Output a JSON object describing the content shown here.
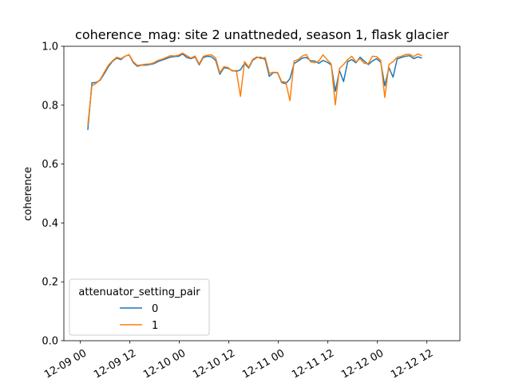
{
  "chart_data": {
    "type": "line",
    "title": "coherence_mag: site 2 unattneded, season 1, flask glacier",
    "xlabel": "",
    "ylabel": "coherence",
    "xlim": [
      "2012-12-08 20:00",
      "2012-12-12 20:00"
    ],
    "ylim": [
      0.0,
      1.0
    ],
    "grid": false,
    "x_ticks": [
      {
        "at": "2012-12-09 00:00",
        "label": "12-09 00"
      },
      {
        "at": "2012-12-09 12:00",
        "label": "12-09 12"
      },
      {
        "at": "2012-12-10 00:00",
        "label": "12-10 00"
      },
      {
        "at": "2012-12-10 12:00",
        "label": "12-10 12"
      },
      {
        "at": "2012-12-11 00:00",
        "label": "12-11 00"
      },
      {
        "at": "2012-12-11 12:00",
        "label": "12-11 12"
      },
      {
        "at": "2012-12-12 00:00",
        "label": "12-12 00"
      },
      {
        "at": "2012-12-12 12:00",
        "label": "12-12 12"
      }
    ],
    "y_ticks": [
      {
        "value": 0.0,
        "label": "0.0"
      },
      {
        "value": 0.2,
        "label": "0.2"
      },
      {
        "value": 0.4,
        "label": "0.4"
      },
      {
        "value": 0.6,
        "label": "0.6"
      },
      {
        "value": 0.8,
        "label": "0.8"
      },
      {
        "value": 1.0,
        "label": "1.0"
      }
    ],
    "legend": {
      "title": "attenuator_setting_pair",
      "position": "lower-left"
    },
    "series": [
      {
        "name": "0",
        "color": "#1f77b4",
        "points": [
          [
            "2012-12-09 01:48",
            0.716
          ],
          [
            "2012-12-09 02:48",
            0.876
          ],
          [
            "2012-12-09 03:48",
            0.877
          ],
          [
            "2012-12-09 04:48",
            0.885
          ],
          [
            "2012-12-09 05:48",
            0.907
          ],
          [
            "2012-12-09 06:48",
            0.931
          ],
          [
            "2012-12-09 07:48",
            0.949
          ],
          [
            "2012-12-09 08:48",
            0.96
          ],
          [
            "2012-12-09 09:48",
            0.955
          ],
          [
            "2012-12-09 10:48",
            0.966
          ],
          [
            "2012-12-09 11:48",
            0.971
          ],
          [
            "2012-12-09 12:48",
            0.945
          ],
          [
            "2012-12-09 13:48",
            0.932
          ],
          [
            "2012-12-09 14:48",
            0.936
          ],
          [
            "2012-12-09 15:48",
            0.936
          ],
          [
            "2012-12-09 16:48",
            0.938
          ],
          [
            "2012-12-09 17:48",
            0.941
          ],
          [
            "2012-12-09 18:48",
            0.948
          ],
          [
            "2012-12-09 19:48",
            0.953
          ],
          [
            "2012-12-09 20:48",
            0.958
          ],
          [
            "2012-12-09 21:48",
            0.963
          ],
          [
            "2012-12-09 22:48",
            0.965
          ],
          [
            "2012-12-09 23:48",
            0.966
          ],
          [
            "2012-12-10 00:48",
            0.974
          ],
          [
            "2012-12-10 01:48",
            0.962
          ],
          [
            "2012-12-10 02:48",
            0.958
          ],
          [
            "2012-12-10 03:48",
            0.964
          ],
          [
            "2012-12-10 04:48",
            0.937
          ],
          [
            "2012-12-10 05:48",
            0.962
          ],
          [
            "2012-12-10 06:48",
            0.966
          ],
          [
            "2012-12-10 07:48",
            0.964
          ],
          [
            "2012-12-10 08:48",
            0.952
          ],
          [
            "2012-12-10 09:48",
            0.905
          ],
          [
            "2012-12-10 10:48",
            0.927
          ],
          [
            "2012-12-10 11:48",
            0.925
          ],
          [
            "2012-12-10 12:48",
            0.918
          ],
          [
            "2012-12-10 13:48",
            0.915
          ],
          [
            "2012-12-10 14:48",
            0.92
          ],
          [
            "2012-12-10 15:48",
            0.942
          ],
          [
            "2012-12-10 16:48",
            0.926
          ],
          [
            "2012-12-10 17:48",
            0.953
          ],
          [
            "2012-12-10 18:48",
            0.962
          ],
          [
            "2012-12-10 19:48",
            0.962
          ],
          [
            "2012-12-10 20:48",
            0.955
          ],
          [
            "2012-12-10 21:48",
            0.898
          ],
          [
            "2012-12-10 22:48",
            0.911
          ],
          [
            "2012-12-10 23:48",
            0.91
          ],
          [
            "2012-12-11 00:48",
            0.877
          ],
          [
            "2012-12-11 01:48",
            0.873
          ],
          [
            "2012-12-11 02:48",
            0.89
          ],
          [
            "2012-12-11 03:48",
            0.941
          ],
          [
            "2012-12-11 04:48",
            0.95
          ],
          [
            "2012-12-11 05:48",
            0.96
          ],
          [
            "2012-12-11 06:48",
            0.962
          ],
          [
            "2012-12-11 07:48",
            0.951
          ],
          [
            "2012-12-11 08:48",
            0.95
          ],
          [
            "2012-12-11 09:48",
            0.942
          ],
          [
            "2012-12-11 10:48",
            0.952
          ],
          [
            "2012-12-11 11:48",
            0.946
          ],
          [
            "2012-12-11 12:48",
            0.937
          ],
          [
            "2012-12-11 13:48",
            0.847
          ],
          [
            "2012-12-11 14:48",
            0.918
          ],
          [
            "2012-12-11 15:48",
            0.88
          ],
          [
            "2012-12-11 16:48",
            0.948
          ],
          [
            "2012-12-11 17:48",
            0.955
          ],
          [
            "2012-12-11 18:48",
            0.944
          ],
          [
            "2012-12-11 19:48",
            0.963
          ],
          [
            "2012-12-11 20:48",
            0.95
          ],
          [
            "2012-12-11 21:48",
            0.938
          ],
          [
            "2012-12-11 22:48",
            0.95
          ],
          [
            "2012-12-11 23:48",
            0.958
          ],
          [
            "2012-12-12 00:48",
            0.946
          ],
          [
            "2012-12-12 01:48",
            0.866
          ],
          [
            "2012-12-12 02:48",
            0.927
          ],
          [
            "2012-12-12 03:48",
            0.895
          ],
          [
            "2012-12-12 04:48",
            0.957
          ],
          [
            "2012-12-12 05:48",
            0.962
          ],
          [
            "2012-12-12 06:48",
            0.966
          ],
          [
            "2012-12-12 07:48",
            0.968
          ],
          [
            "2012-12-12 08:48",
            0.958
          ],
          [
            "2012-12-12 09:48",
            0.964
          ],
          [
            "2012-12-12 10:48",
            0.96
          ]
        ]
      },
      {
        "name": "1",
        "color": "#ff7f0e",
        "points": [
          [
            "2012-12-09 01:48",
            0.732
          ],
          [
            "2012-12-09 02:48",
            0.866
          ],
          [
            "2012-12-09 03:48",
            0.874
          ],
          [
            "2012-12-09 04:48",
            0.887
          ],
          [
            "2012-12-09 05:48",
            0.912
          ],
          [
            "2012-12-09 06:48",
            0.936
          ],
          [
            "2012-12-09 07:48",
            0.951
          ],
          [
            "2012-12-09 08:48",
            0.963
          ],
          [
            "2012-12-09 09:48",
            0.958
          ],
          [
            "2012-12-09 10:48",
            0.966
          ],
          [
            "2012-12-09 11:48",
            0.972
          ],
          [
            "2012-12-09 12:48",
            0.948
          ],
          [
            "2012-12-09 13:48",
            0.935
          ],
          [
            "2012-12-09 14:48",
            0.937
          ],
          [
            "2012-12-09 15:48",
            0.939
          ],
          [
            "2012-12-09 16:48",
            0.94
          ],
          [
            "2012-12-09 17:48",
            0.944
          ],
          [
            "2012-12-09 18:48",
            0.952
          ],
          [
            "2012-12-09 19:48",
            0.956
          ],
          [
            "2012-12-09 20:48",
            0.962
          ],
          [
            "2012-12-09 21:48",
            0.968
          ],
          [
            "2012-12-09 22:48",
            0.967
          ],
          [
            "2012-12-09 23:48",
            0.97
          ],
          [
            "2012-12-10 00:48",
            0.977
          ],
          [
            "2012-12-10 01:48",
            0.968
          ],
          [
            "2012-12-10 02:48",
            0.96
          ],
          [
            "2012-12-10 03:48",
            0.967
          ],
          [
            "2012-12-10 04:48",
            0.94
          ],
          [
            "2012-12-10 05:48",
            0.966
          ],
          [
            "2012-12-10 06:48",
            0.97
          ],
          [
            "2012-12-10 07:48",
            0.971
          ],
          [
            "2012-12-10 08:48",
            0.96
          ],
          [
            "2012-12-10 09:48",
            0.91
          ],
          [
            "2012-12-10 10:48",
            0.931
          ],
          [
            "2012-12-10 11:48",
            0.928
          ],
          [
            "2012-12-10 12:48",
            0.916
          ],
          [
            "2012-12-10 13:48",
            0.918
          ],
          [
            "2012-12-10 14:48",
            0.83
          ],
          [
            "2012-12-10 15:48",
            0.948
          ],
          [
            "2012-12-10 16:48",
            0.929
          ],
          [
            "2012-12-10 17:48",
            0.956
          ],
          [
            "2012-12-10 18:48",
            0.964
          ],
          [
            "2012-12-10 19:48",
            0.958
          ],
          [
            "2012-12-10 20:48",
            0.962
          ],
          [
            "2012-12-10 21:48",
            0.908
          ],
          [
            "2012-12-10 22:48",
            0.912
          ],
          [
            "2012-12-10 23:48",
            0.911
          ],
          [
            "2012-12-11 00:48",
            0.88
          ],
          [
            "2012-12-11 01:48",
            0.878
          ],
          [
            "2012-12-11 02:48",
            0.815
          ],
          [
            "2012-12-11 03:48",
            0.95
          ],
          [
            "2012-12-11 04:48",
            0.955
          ],
          [
            "2012-12-11 05:48",
            0.967
          ],
          [
            "2012-12-11 06:48",
            0.972
          ],
          [
            "2012-12-11 07:48",
            0.947
          ],
          [
            "2012-12-11 08:48",
            0.944
          ],
          [
            "2012-12-11 09:48",
            0.95
          ],
          [
            "2012-12-11 10:48",
            0.971
          ],
          [
            "2012-12-11 11:48",
            0.955
          ],
          [
            "2012-12-11 12:48",
            0.94
          ],
          [
            "2012-12-11 13:48",
            0.801
          ],
          [
            "2012-12-11 14:48",
            0.925
          ],
          [
            "2012-12-11 15:48",
            0.938
          ],
          [
            "2012-12-11 16:48",
            0.955
          ],
          [
            "2012-12-11 17:48",
            0.966
          ],
          [
            "2012-12-11 18:48",
            0.947
          ],
          [
            "2012-12-11 19:48",
            0.958
          ],
          [
            "2012-12-11 20:48",
            0.942
          ],
          [
            "2012-12-11 21:48",
            0.941
          ],
          [
            "2012-12-11 22:48",
            0.966
          ],
          [
            "2012-12-11 23:48",
            0.965
          ],
          [
            "2012-12-12 00:48",
            0.952
          ],
          [
            "2012-12-12 01:48",
            0.826
          ],
          [
            "2012-12-12 02:48",
            0.938
          ],
          [
            "2012-12-12 03:48",
            0.948
          ],
          [
            "2012-12-12 04:48",
            0.963
          ],
          [
            "2012-12-12 05:48",
            0.966
          ],
          [
            "2012-12-12 06:48",
            0.972
          ],
          [
            "2012-12-12 07:48",
            0.973
          ],
          [
            "2012-12-12 08:48",
            0.965
          ],
          [
            "2012-12-12 09:48",
            0.974
          ],
          [
            "2012-12-12 10:48",
            0.968
          ]
        ]
      }
    ]
  }
}
